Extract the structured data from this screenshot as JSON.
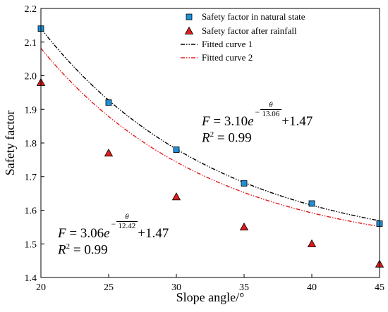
{
  "chart_data": {
    "type": "scatter",
    "xlabel": "Slope angle/°",
    "ylabel": "Safety factor",
    "xlim": [
      20,
      45
    ],
    "ylim": [
      1.4,
      2.2
    ],
    "xticks": [
      "20",
      "25",
      "30",
      "35",
      "40",
      "45"
    ],
    "yticks": [
      "1.4",
      "1.5",
      "1.6",
      "1.7",
      "1.8",
      "1.9",
      "2.0",
      "2.1",
      "2.2"
    ],
    "legend_position": "top-right",
    "series": [
      {
        "name": "Safety factor in natural state",
        "marker": "square",
        "color": "#1f8fd6",
        "x": [
          20,
          25,
          30,
          35,
          40,
          45
        ],
        "y": [
          2.14,
          1.92,
          1.78,
          1.68,
          1.62,
          1.56
        ]
      },
      {
        "name": "Safety factor after rainfall",
        "marker": "triangle",
        "color": "#e01b1b",
        "x": [
          20,
          25,
          30,
          35,
          40,
          45
        ],
        "y": [
          1.98,
          1.77,
          1.64,
          1.55,
          1.5,
          1.44
        ]
      }
    ],
    "fits": [
      {
        "name": "Fitted curve 1",
        "color": "#000000",
        "a": 3.1,
        "b": 13.06,
        "c": 1.47
      },
      {
        "name": "Fitted curve 2",
        "color": "#e01b1b",
        "a": 3.06,
        "b": 12.42,
        "c": 1.47
      }
    ],
    "annotations": [
      {
        "F": "F",
        "eq": "= 3.10",
        "e": "e",
        "num": "θ",
        "den": "13.06",
        "plus": "+1.47",
        "R": "R",
        "sup": "2",
        "r2": "= 0.99"
      },
      {
        "F": "F",
        "eq": "= 3.06",
        "e": "e",
        "num": "θ",
        "den": "12.42",
        "plus": "+1.47",
        "R": "R",
        "sup": "2",
        "r2": "= 0.99"
      }
    ]
  }
}
